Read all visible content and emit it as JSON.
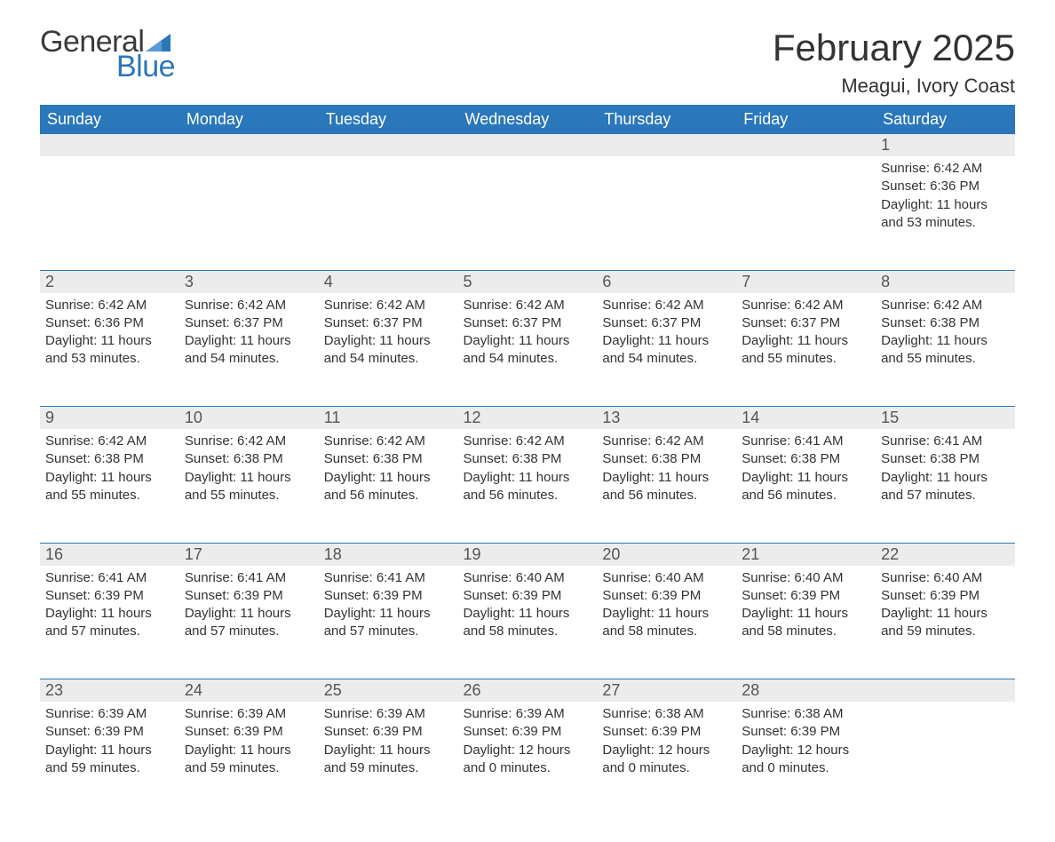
{
  "brand": {
    "word1": "General",
    "word2": "Blue",
    "flag_color": "#2a77bb"
  },
  "title": "February 2025",
  "location": "Meagui, Ivory Coast",
  "colors": {
    "header_bg": "#2a77bb",
    "header_text": "#ffffff",
    "daynum_bg": "#ececec",
    "text": "#333333",
    "rule": "#2a77bb"
  },
  "weekday_labels": [
    "Sunday",
    "Monday",
    "Tuesday",
    "Wednesday",
    "Thursday",
    "Friday",
    "Saturday"
  ],
  "weeks": [
    [
      null,
      null,
      null,
      null,
      null,
      null,
      {
        "n": "1",
        "sunrise": "Sunrise: 6:42 AM",
        "sunset": "Sunset: 6:36 PM",
        "daylight": "Daylight: 11 hours and 53 minutes."
      }
    ],
    [
      {
        "n": "2",
        "sunrise": "Sunrise: 6:42 AM",
        "sunset": "Sunset: 6:36 PM",
        "daylight": "Daylight: 11 hours and 53 minutes."
      },
      {
        "n": "3",
        "sunrise": "Sunrise: 6:42 AM",
        "sunset": "Sunset: 6:37 PM",
        "daylight": "Daylight: 11 hours and 54 minutes."
      },
      {
        "n": "4",
        "sunrise": "Sunrise: 6:42 AM",
        "sunset": "Sunset: 6:37 PM",
        "daylight": "Daylight: 11 hours and 54 minutes."
      },
      {
        "n": "5",
        "sunrise": "Sunrise: 6:42 AM",
        "sunset": "Sunset: 6:37 PM",
        "daylight": "Daylight: 11 hours and 54 minutes."
      },
      {
        "n": "6",
        "sunrise": "Sunrise: 6:42 AM",
        "sunset": "Sunset: 6:37 PM",
        "daylight": "Daylight: 11 hours and 54 minutes."
      },
      {
        "n": "7",
        "sunrise": "Sunrise: 6:42 AM",
        "sunset": "Sunset: 6:37 PM",
        "daylight": "Daylight: 11 hours and 55 minutes."
      },
      {
        "n": "8",
        "sunrise": "Sunrise: 6:42 AM",
        "sunset": "Sunset: 6:38 PM",
        "daylight": "Daylight: 11 hours and 55 minutes."
      }
    ],
    [
      {
        "n": "9",
        "sunrise": "Sunrise: 6:42 AM",
        "sunset": "Sunset: 6:38 PM",
        "daylight": "Daylight: 11 hours and 55 minutes."
      },
      {
        "n": "10",
        "sunrise": "Sunrise: 6:42 AM",
        "sunset": "Sunset: 6:38 PM",
        "daylight": "Daylight: 11 hours and 55 minutes."
      },
      {
        "n": "11",
        "sunrise": "Sunrise: 6:42 AM",
        "sunset": "Sunset: 6:38 PM",
        "daylight": "Daylight: 11 hours and 56 minutes."
      },
      {
        "n": "12",
        "sunrise": "Sunrise: 6:42 AM",
        "sunset": "Sunset: 6:38 PM",
        "daylight": "Daylight: 11 hours and 56 minutes."
      },
      {
        "n": "13",
        "sunrise": "Sunrise: 6:42 AM",
        "sunset": "Sunset: 6:38 PM",
        "daylight": "Daylight: 11 hours and 56 minutes."
      },
      {
        "n": "14",
        "sunrise": "Sunrise: 6:41 AM",
        "sunset": "Sunset: 6:38 PM",
        "daylight": "Daylight: 11 hours and 56 minutes."
      },
      {
        "n": "15",
        "sunrise": "Sunrise: 6:41 AM",
        "sunset": "Sunset: 6:38 PM",
        "daylight": "Daylight: 11 hours and 57 minutes."
      }
    ],
    [
      {
        "n": "16",
        "sunrise": "Sunrise: 6:41 AM",
        "sunset": "Sunset: 6:39 PM",
        "daylight": "Daylight: 11 hours and 57 minutes."
      },
      {
        "n": "17",
        "sunrise": "Sunrise: 6:41 AM",
        "sunset": "Sunset: 6:39 PM",
        "daylight": "Daylight: 11 hours and 57 minutes."
      },
      {
        "n": "18",
        "sunrise": "Sunrise: 6:41 AM",
        "sunset": "Sunset: 6:39 PM",
        "daylight": "Daylight: 11 hours and 57 minutes."
      },
      {
        "n": "19",
        "sunrise": "Sunrise: 6:40 AM",
        "sunset": "Sunset: 6:39 PM",
        "daylight": "Daylight: 11 hours and 58 minutes."
      },
      {
        "n": "20",
        "sunrise": "Sunrise: 6:40 AM",
        "sunset": "Sunset: 6:39 PM",
        "daylight": "Daylight: 11 hours and 58 minutes."
      },
      {
        "n": "21",
        "sunrise": "Sunrise: 6:40 AM",
        "sunset": "Sunset: 6:39 PM",
        "daylight": "Daylight: 11 hours and 58 minutes."
      },
      {
        "n": "22",
        "sunrise": "Sunrise: 6:40 AM",
        "sunset": "Sunset: 6:39 PM",
        "daylight": "Daylight: 11 hours and 59 minutes."
      }
    ],
    [
      {
        "n": "23",
        "sunrise": "Sunrise: 6:39 AM",
        "sunset": "Sunset: 6:39 PM",
        "daylight": "Daylight: 11 hours and 59 minutes."
      },
      {
        "n": "24",
        "sunrise": "Sunrise: 6:39 AM",
        "sunset": "Sunset: 6:39 PM",
        "daylight": "Daylight: 11 hours and 59 minutes."
      },
      {
        "n": "25",
        "sunrise": "Sunrise: 6:39 AM",
        "sunset": "Sunset: 6:39 PM",
        "daylight": "Daylight: 11 hours and 59 minutes."
      },
      {
        "n": "26",
        "sunrise": "Sunrise: 6:39 AM",
        "sunset": "Sunset: 6:39 PM",
        "daylight": "Daylight: 12 hours and 0 minutes."
      },
      {
        "n": "27",
        "sunrise": "Sunrise: 6:38 AM",
        "sunset": "Sunset: 6:39 PM",
        "daylight": "Daylight: 12 hours and 0 minutes."
      },
      {
        "n": "28",
        "sunrise": "Sunrise: 6:38 AM",
        "sunset": "Sunset: 6:39 PM",
        "daylight": "Daylight: 12 hours and 0 minutes."
      },
      null
    ]
  ]
}
